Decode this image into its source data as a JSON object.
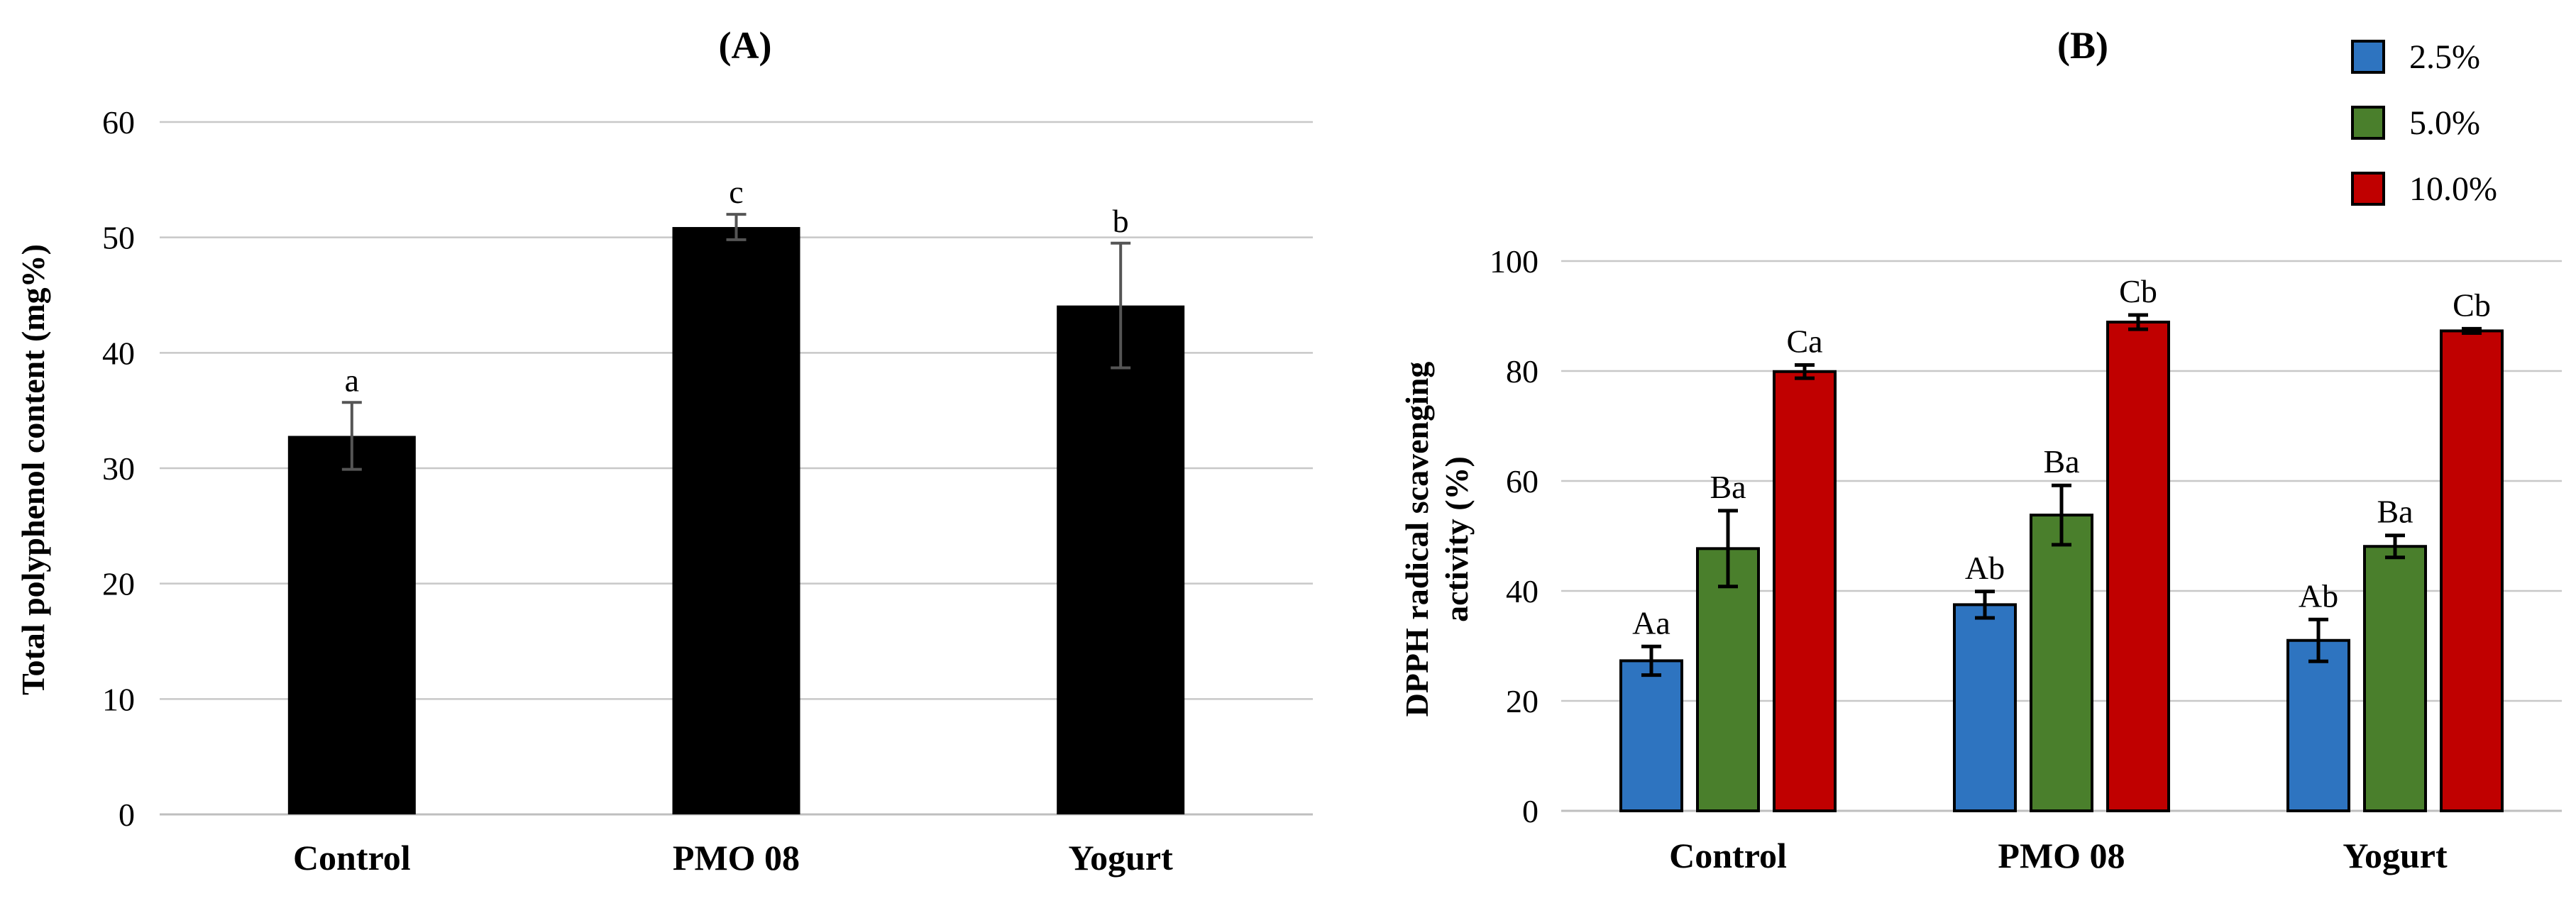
{
  "chart_data": [
    {
      "type": "bar",
      "title": "(A)",
      "ylabel": "Total polyphenol content (mg%)",
      "xlabel": "",
      "categories": [
        "Control",
        "PMO 08",
        "Yogurt"
      ],
      "values": [
        32.8,
        50.9,
        44.1
      ],
      "errors": [
        2.9,
        1.1,
        5.4
      ],
      "labels": [
        "a",
        "c",
        "b"
      ],
      "ylim": [
        0,
        60
      ],
      "yticks": [
        "0",
        "10",
        "20",
        "30",
        "40",
        "50",
        "60"
      ],
      "grid": true,
      "color": "#000000"
    },
    {
      "type": "bar",
      "title": "(B)",
      "ylabel": [
        "DPPH radical scavenging",
        "activity (%)"
      ],
      "xlabel": "",
      "categories": [
        "Control",
        "PMO 08",
        "Yogurt"
      ],
      "series": [
        {
          "name": "2.5%",
          "color": "#2e74c0",
          "values": [
            27.3,
            37.5,
            31.0
          ],
          "errors": [
            2.6,
            2.4,
            3.8
          ],
          "labels": [
            "Aa",
            "Ab",
            "Ab"
          ]
        },
        {
          "name": "5.0%",
          "color": "#4a7f2c",
          "values": [
            47.7,
            53.8,
            48.1
          ],
          "errors": [
            6.9,
            5.4,
            2.0
          ],
          "labels": [
            "Ba",
            "Ba",
            "Ba"
          ]
        },
        {
          "name": "10.0%",
          "color": "#c00000",
          "values": [
            79.9,
            88.9,
            87.3
          ],
          "errors": [
            1.2,
            1.3,
            0.4
          ],
          "labels": [
            "Ca",
            "Cb",
            "Cb"
          ]
        }
      ],
      "ylim": [
        0,
        100
      ],
      "yticks": [
        "0",
        "20",
        "40",
        "60",
        "80",
        "100"
      ],
      "grid": true,
      "legend_position": "top-right"
    }
  ]
}
